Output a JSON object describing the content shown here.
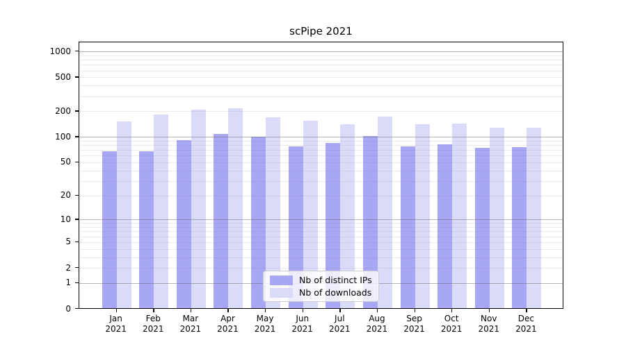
{
  "title": "scPipe 2021",
  "colors": {
    "ips": "#a7a7f5",
    "downloads": "#dadaf9",
    "axis": "#000000",
    "grid_major": "#b3b3b3",
    "grid_minor": "#e9e9e9"
  },
  "legend": {
    "items": [
      {
        "label": "Nb of distinct IPs",
        "series": "ips"
      },
      {
        "label": "Nb of downloads",
        "series": "downloads"
      }
    ]
  },
  "chart_data": {
    "type": "bar",
    "title": "scPipe 2021",
    "categories": [
      "Jan 2021",
      "Feb 2021",
      "Mar 2021",
      "Apr 2021",
      "May 2021",
      "Jun 2021",
      "Jul 2021",
      "Aug 2021",
      "Sep 2021",
      "Oct 2021",
      "Nov 2021",
      "Dec 2021"
    ],
    "series": [
      {
        "name": "Nb of distinct IPs",
        "color": "#a7a7f5",
        "values": [
          66,
          67,
          90,
          107,
          99,
          76,
          83,
          100,
          76,
          80,
          73,
          75
        ]
      },
      {
        "name": "Nb of downloads",
        "color": "#dadaf9",
        "values": [
          150,
          181,
          206,
          213,
          168,
          151,
          138,
          171,
          138,
          142,
          126,
          127
        ]
      }
    ],
    "xlabel": "",
    "ylabel": "",
    "y_scale": "log1p",
    "y_ticks": [
      0,
      1,
      2,
      5,
      10,
      20,
      50,
      100,
      200,
      500,
      1000
    ],
    "ylim": [
      0,
      1280
    ],
    "grid": true,
    "legend_position": "lower center"
  }
}
